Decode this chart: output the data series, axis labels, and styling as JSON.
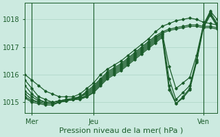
{
  "title": "",
  "xlabel": "Pression niveau de la mer( hPa )",
  "background_color": "#cceae0",
  "grid_color": "#aad4c4",
  "line_color": "#1a5c2a",
  "text_color": "#1a5c2a",
  "ylim": [
    1014.6,
    1018.6
  ],
  "xlim": [
    0,
    56
  ],
  "yticks": [
    1015,
    1016,
    1017,
    1018
  ],
  "xtick_positions": [
    2,
    20,
    52
  ],
  "xtick_labels": [
    "Mer",
    "Jeu",
    "Ven"
  ],
  "vline_positions": [
    2,
    20,
    52
  ],
  "series": [
    {
      "x": [
        0,
        2,
        4,
        6,
        8,
        10,
        12,
        14,
        16,
        18,
        20,
        22,
        24,
        26,
        28,
        30,
        32,
        34,
        36,
        38,
        40,
        42,
        44,
        46,
        48,
        50,
        52,
        54,
        56
      ],
      "y": [
        1016.0,
        1015.8,
        1015.6,
        1015.4,
        1015.3,
        1015.2,
        1015.2,
        1015.2,
        1015.3,
        1015.5,
        1015.7,
        1016.0,
        1016.2,
        1016.35,
        1016.5,
        1016.7,
        1016.9,
        1017.1,
        1017.3,
        1017.55,
        1017.75,
        1017.85,
        1017.95,
        1018.0,
        1018.05,
        1018.0,
        1017.9,
        1017.85,
        1017.8
      ]
    },
    {
      "x": [
        0,
        2,
        4,
        6,
        8,
        10,
        12,
        14,
        16,
        18,
        20,
        22,
        24,
        26,
        28,
        30,
        32,
        34,
        36,
        38,
        40,
        42,
        44,
        46,
        48,
        50,
        52,
        54,
        56
      ],
      "y": [
        1015.8,
        1015.5,
        1015.2,
        1015.1,
        1015.0,
        1015.05,
        1015.1,
        1015.15,
        1015.2,
        1015.4,
        1015.6,
        1015.85,
        1016.1,
        1016.25,
        1016.4,
        1016.6,
        1016.8,
        1017.0,
        1017.2,
        1017.4,
        1017.55,
        1017.65,
        1017.7,
        1017.75,
        1017.8,
        1017.8,
        1017.75,
        1017.75,
        1017.7
      ]
    },
    {
      "x": [
        0,
        2,
        4,
        6,
        8,
        10,
        12,
        14,
        16,
        18,
        20,
        22,
        24,
        26,
        28,
        30,
        32,
        34,
        36,
        38,
        40,
        42,
        44,
        46,
        48,
        50,
        52,
        54,
        56
      ],
      "y": [
        1015.6,
        1015.3,
        1015.1,
        1015.0,
        1015.0,
        1015.05,
        1015.1,
        1015.1,
        1015.2,
        1015.35,
        1015.55,
        1015.8,
        1016.05,
        1016.2,
        1016.35,
        1016.55,
        1016.75,
        1016.95,
        1017.15,
        1017.35,
        1017.5,
        1017.6,
        1017.65,
        1017.7,
        1017.75,
        1017.75,
        1017.7,
        1017.7,
        1017.65
      ]
    },
    {
      "x": [
        0,
        2,
        4,
        6,
        8,
        10,
        12,
        14,
        16,
        18,
        20,
        22,
        24,
        26,
        28,
        30,
        32,
        34,
        36,
        38,
        40,
        42,
        44,
        46,
        48,
        50,
        52,
        54,
        56
      ],
      "y": [
        1015.4,
        1015.2,
        1015.05,
        1015.0,
        1015.0,
        1015.05,
        1015.05,
        1015.1,
        1015.2,
        1015.3,
        1015.5,
        1015.75,
        1016.0,
        1016.15,
        1016.3,
        1016.5,
        1016.7,
        1016.9,
        1017.1,
        1017.3,
        1017.5,
        1016.3,
        1015.5,
        1015.7,
        1015.9,
        1016.7,
        1017.8,
        1018.3,
        1018.0
      ]
    },
    {
      "x": [
        0,
        2,
        4,
        6,
        8,
        10,
        12,
        14,
        16,
        18,
        20,
        22,
        24,
        26,
        28,
        30,
        32,
        34,
        36,
        38,
        40,
        42,
        44,
        46,
        48,
        50,
        52,
        54,
        56
      ],
      "y": [
        1015.3,
        1015.1,
        1015.0,
        1014.95,
        1014.95,
        1015.0,
        1015.05,
        1015.1,
        1015.15,
        1015.25,
        1015.45,
        1015.7,
        1015.95,
        1016.1,
        1016.25,
        1016.45,
        1016.65,
        1016.85,
        1017.05,
        1017.25,
        1017.45,
        1015.85,
        1015.1,
        1015.35,
        1015.6,
        1016.55,
        1017.8,
        1018.25,
        1017.85
      ]
    },
    {
      "x": [
        0,
        2,
        4,
        6,
        8,
        10,
        12,
        14,
        16,
        18,
        20,
        22,
        24,
        26,
        28,
        30,
        32,
        34,
        36,
        38,
        40,
        42,
        44,
        46,
        48,
        50,
        52,
        54,
        56
      ],
      "y": [
        1015.2,
        1015.05,
        1015.0,
        1014.95,
        1014.95,
        1015.0,
        1015.05,
        1015.1,
        1015.15,
        1015.2,
        1015.4,
        1015.65,
        1015.9,
        1016.05,
        1016.2,
        1016.4,
        1016.6,
        1016.8,
        1017.0,
        1017.2,
        1017.4,
        1015.6,
        1014.95,
        1015.2,
        1015.5,
        1016.5,
        1017.75,
        1018.2,
        1017.8
      ]
    },
    {
      "x": [
        0,
        2,
        4,
        6,
        8,
        10,
        12,
        14,
        16,
        18,
        20,
        22,
        24,
        26,
        28,
        30,
        32,
        34,
        36,
        38,
        40,
        42,
        44,
        46,
        48,
        50,
        52,
        54,
        56
      ],
      "y": [
        1015.15,
        1015.0,
        1014.95,
        1014.9,
        1014.9,
        1015.0,
        1015.05,
        1015.1,
        1015.1,
        1015.2,
        1015.35,
        1015.6,
        1015.85,
        1016.0,
        1016.15,
        1016.35,
        1016.55,
        1016.75,
        1016.95,
        1017.15,
        1017.35,
        1015.45,
        1014.95,
        1015.15,
        1015.45,
        1016.45,
        1017.7,
        1018.15,
        1017.75
      ]
    }
  ]
}
